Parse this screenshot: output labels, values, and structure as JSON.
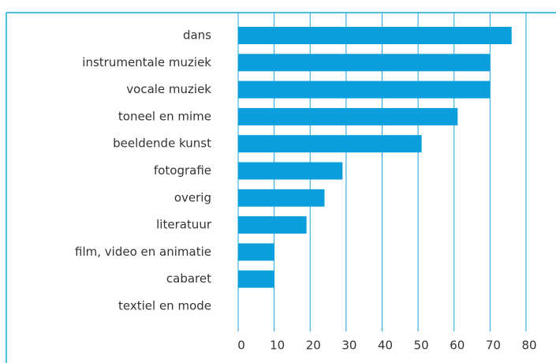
{
  "chart_data": {
    "type": "bar",
    "orientation": "horizontal",
    "categories": [
      "dans",
      "instrumentale muziek",
      "vocale muziek",
      "toneel en mime",
      "beeldende kunst",
      "fotografie",
      "overig",
      "literatuur",
      "film, video en animatie",
      "cabaret",
      "textiel en mode"
    ],
    "values": [
      76,
      70,
      70,
      61,
      51,
      29,
      24,
      19,
      10,
      10,
      0
    ],
    "color": "#0a9fdc",
    "xlim": [
      0,
      80
    ],
    "xticks": [
      0,
      10,
      20,
      30,
      40,
      50,
      60,
      70,
      80
    ],
    "grid": true
  }
}
